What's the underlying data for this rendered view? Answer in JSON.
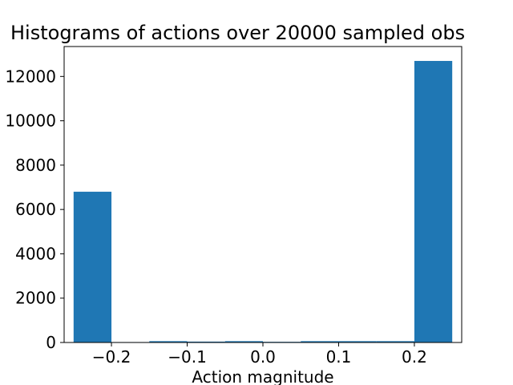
{
  "chart_data": {
    "type": "bar",
    "title": "Histograms of actions over 20000 sampled obs",
    "xlabel": "Action magnitude",
    "ylabel": "",
    "bins": [
      {
        "start": -0.25,
        "end": -0.2,
        "value": 6800
      },
      {
        "start": -0.2,
        "end": -0.15,
        "value": 20
      },
      {
        "start": -0.15,
        "end": -0.1,
        "value": 60
      },
      {
        "start": -0.1,
        "end": -0.05,
        "value": 40
      },
      {
        "start": -0.05,
        "end": 0.0,
        "value": 60
      },
      {
        "start": 0.0,
        "end": 0.05,
        "value": 30
      },
      {
        "start": 0.05,
        "end": 0.1,
        "value": 60
      },
      {
        "start": 0.1,
        "end": 0.15,
        "value": 60
      },
      {
        "start": 0.15,
        "end": 0.2,
        "value": 60
      },
      {
        "start": 0.2,
        "end": 0.25,
        "value": 12700
      }
    ],
    "xlim": [
      -0.2625,
      0.2625
    ],
    "ylim": [
      0,
      13350
    ],
    "xticks": [
      -0.2,
      -0.1,
      0.0,
      0.1,
      0.2
    ],
    "xtick_labels": [
      "−0.2",
      "−0.1",
      "0.0",
      "0.1",
      "0.2"
    ],
    "yticks": [
      0,
      2000,
      4000,
      6000,
      8000,
      10000,
      12000
    ],
    "ytick_labels": [
      "0",
      "2000",
      "4000",
      "6000",
      "8000",
      "10000",
      "12000"
    ],
    "bar_color": "#1f77b4",
    "grid": false,
    "legend": "none"
  }
}
